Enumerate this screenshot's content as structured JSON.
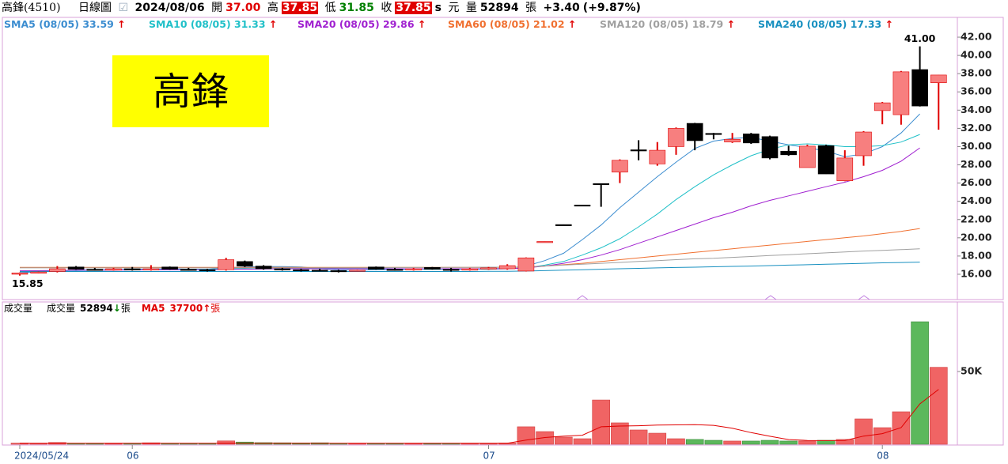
{
  "header": {
    "stock": "高鋒(4510)",
    "period": "日線圖",
    "date": "2024/08/06",
    "open_label": "開",
    "open": "37.00",
    "high_label": "高",
    "high": "37.85",
    "low_label": "低",
    "low": "31.85",
    "close_label": "收",
    "close": "37.85",
    "s": "s",
    "currency": "元",
    "volume_label": "量",
    "volume": "52894",
    "volume_unit": "張",
    "change": "+3.40",
    "change_pct": "(+9.87%)"
  },
  "chart_data": {
    "type": "candlestick",
    "annotation": "高鋒",
    "categories": [
      "2024/05/24",
      null,
      null,
      null,
      null,
      null,
      "06",
      null,
      null,
      null,
      null,
      null,
      null,
      null,
      null,
      null,
      null,
      null,
      null,
      null,
      null,
      null,
      null,
      null,
      null,
      "07",
      null,
      null,
      null,
      null,
      null,
      null,
      null,
      null,
      null,
      null,
      null,
      null,
      null,
      null,
      null,
      null,
      null,
      null,
      null,
      null,
      "08",
      null,
      null,
      null
    ],
    "open": [
      16.0,
      16.15,
      16.3,
      16.8,
      16.55,
      16.45,
      16.6,
      16.5,
      16.8,
      16.55,
      16.5,
      16.5,
      17.4,
      16.9,
      16.6,
      16.5,
      16.45,
      16.4,
      16.35,
      16.8,
      16.55,
      16.5,
      16.75,
      16.55,
      16.45,
      16.6,
      16.6,
      16.35,
      19.5,
      21.45,
      23.6,
      25.95,
      27.2,
      29.65,
      28.1,
      30.0,
      32.55,
      31.45,
      30.5,
      31.4,
      31.1,
      29.5,
      27.7,
      30.1,
      26.25,
      29.0,
      33.95,
      33.5,
      38.45,
      37.0
    ],
    "high": [
      16.2,
      16.3,
      16.9,
      16.9,
      16.7,
      16.7,
      16.8,
      17.0,
      16.85,
      16.7,
      16.6,
      17.8,
      17.5,
      17.0,
      16.7,
      16.6,
      16.6,
      16.5,
      16.5,
      16.85,
      16.7,
      16.7,
      16.8,
      16.7,
      16.7,
      16.8,
      17.1,
      17.85,
      19.6,
      21.45,
      23.6,
      25.95,
      28.6,
      30.7,
      30.5,
      32.1,
      32.6,
      31.5,
      31.5,
      31.5,
      31.2,
      30.1,
      30.2,
      30.2,
      29.6,
      31.7,
      34.9,
      38.3,
      41.0,
      37.85
    ],
    "low": [
      15.85,
      16.1,
      16.2,
      16.5,
      16.4,
      16.4,
      16.4,
      16.4,
      16.5,
      16.4,
      16.3,
      16.4,
      16.8,
      16.5,
      16.4,
      16.3,
      16.3,
      16.2,
      16.3,
      16.5,
      16.4,
      16.4,
      16.5,
      16.3,
      16.4,
      16.5,
      16.5,
      16.3,
      19.5,
      21.4,
      23.55,
      23.4,
      26.0,
      28.5,
      27.9,
      29.1,
      29.6,
      30.8,
      30.4,
      30.3,
      28.6,
      29.0,
      27.7,
      27.0,
      26.2,
      27.9,
      32.45,
      32.4,
      34.4,
      31.85
    ],
    "close": [
      16.15,
      16.25,
      16.6,
      16.55,
      16.45,
      16.6,
      16.5,
      16.6,
      16.55,
      16.5,
      16.45,
      17.6,
      16.9,
      16.6,
      16.5,
      16.45,
      16.4,
      16.35,
      16.45,
      16.55,
      16.5,
      16.6,
      16.55,
      16.45,
      16.6,
      16.7,
      16.95,
      17.8,
      19.6,
      21.4,
      23.55,
      25.9,
      28.5,
      29.6,
      29.6,
      32.0,
      30.65,
      31.4,
      30.8,
      30.4,
      28.75,
      29.1,
      30.05,
      27.0,
      28.75,
      31.6,
      34.8,
      38.2,
      34.45,
      37.85
    ],
    "up_color": "#f77f7f",
    "up_line": "#e00000",
    "down_color": "#000000",
    "high_mark": "41.00",
    "low_mark": "15.85",
    "ylim": [
      13.31,
      44.17
    ],
    "yticks": [
      {
        "value": 16,
        "label": "16.00"
      },
      {
        "value": 18,
        "label": "18.00"
      },
      {
        "value": 20,
        "label": "20.00"
      },
      {
        "value": 22,
        "label": "22.00"
      },
      {
        "value": 24,
        "label": "24.00"
      },
      {
        "value": 26,
        "label": "26.00"
      },
      {
        "value": 28,
        "label": "28.00"
      },
      {
        "value": 30,
        "label": "30.00"
      },
      {
        "value": 32,
        "label": "32.00"
      },
      {
        "value": 34,
        "label": "34.00"
      },
      {
        "value": 36,
        "label": "36.00"
      },
      {
        "value": 38,
        "label": "38.00"
      },
      {
        "value": 40,
        "label": "40.00"
      },
      {
        "value": 42,
        "label": "42.00"
      }
    ],
    "series": [
      {
        "name": "SMA5",
        "legend_date": "(08/05)",
        "legend_value": "33.59",
        "legend_arrow": "↑",
        "color": "#3c8dd0",
        "values": [
          16.2,
          16.25,
          16.35,
          16.45,
          16.5,
          16.5,
          16.55,
          16.55,
          16.6,
          16.55,
          16.55,
          16.7,
          16.8,
          16.85,
          16.85,
          16.8,
          16.6,
          16.5,
          16.45,
          16.5,
          16.5,
          16.55,
          16.55,
          16.55,
          16.55,
          16.6,
          16.65,
          16.9,
          17.5,
          18.3,
          19.8,
          21.4,
          23.3,
          25.0,
          26.7,
          28.3,
          29.8,
          30.6,
          30.9,
          31.0,
          30.6,
          30.2,
          29.9,
          29.5,
          28.9,
          29.2,
          30.0,
          31.5,
          33.59,
          null
        ]
      },
      {
        "name": "SMA10",
        "legend_date": "(08/05)",
        "legend_value": "31.33",
        "legend_arrow": "↑",
        "color": "#20c0c8",
        "values": [
          16.3,
          16.35,
          16.4,
          16.4,
          16.45,
          16.45,
          16.5,
          16.5,
          16.5,
          16.5,
          16.55,
          16.6,
          16.65,
          16.7,
          16.7,
          16.7,
          16.65,
          16.65,
          16.65,
          16.65,
          16.6,
          16.55,
          16.55,
          16.55,
          16.55,
          16.55,
          16.6,
          16.7,
          17.0,
          17.4,
          18.1,
          18.9,
          19.9,
          21.2,
          22.6,
          24.2,
          25.6,
          26.9,
          28.0,
          29.0,
          29.7,
          30.2,
          30.3,
          30.2,
          30.0,
          30.0,
          30.1,
          30.5,
          31.33,
          null
        ]
      },
      {
        "name": "SMA20",
        "legend_date": "(08/05)",
        "legend_value": "29.86",
        "legend_arrow": "↑",
        "color": "#a020d0",
        "values": [
          16.4,
          16.4,
          16.42,
          16.44,
          16.45,
          16.46,
          16.47,
          16.48,
          16.5,
          16.5,
          16.5,
          16.52,
          16.55,
          16.58,
          16.6,
          16.6,
          16.6,
          16.6,
          16.6,
          16.6,
          16.6,
          16.6,
          16.6,
          16.6,
          16.6,
          16.6,
          16.6,
          16.7,
          16.9,
          17.2,
          17.6,
          18.1,
          18.7,
          19.4,
          20.1,
          20.8,
          21.5,
          22.2,
          22.8,
          23.5,
          24.1,
          24.6,
          25.1,
          25.6,
          26.1,
          26.7,
          27.4,
          28.4,
          29.86,
          null
        ]
      },
      {
        "name": "SMA60",
        "legend_date": "(08/05)",
        "legend_value": "21.02",
        "legend_arrow": "↑",
        "color": "#f07030",
        "values": [
          16.75,
          16.75,
          16.75,
          16.75,
          16.75,
          16.75,
          16.75,
          16.75,
          16.75,
          16.75,
          16.75,
          16.75,
          16.75,
          16.75,
          16.75,
          16.75,
          16.75,
          16.75,
          16.75,
          16.75,
          16.75,
          16.75,
          16.75,
          16.75,
          16.75,
          16.75,
          16.75,
          16.8,
          16.9,
          17.05,
          17.2,
          17.4,
          17.6,
          17.8,
          18.0,
          18.2,
          18.4,
          18.6,
          18.8,
          19.0,
          19.2,
          19.4,
          19.6,
          19.8,
          20.0,
          20.2,
          20.45,
          20.7,
          21.02,
          null
        ]
      },
      {
        "name": "SMA120",
        "legend_date": "(08/05)",
        "legend_value": "18.79",
        "legend_arrow": "↑",
        "color": "#a0a0a0",
        "values": [
          16.7,
          16.7,
          16.7,
          16.7,
          16.7,
          16.7,
          16.7,
          16.7,
          16.7,
          16.7,
          16.7,
          16.7,
          16.7,
          16.7,
          16.7,
          16.7,
          16.72,
          16.72,
          16.72,
          16.72,
          16.74,
          16.74,
          16.74,
          16.76,
          16.76,
          16.78,
          16.78,
          16.8,
          16.9,
          17.0,
          17.1,
          17.2,
          17.3,
          17.4,
          17.5,
          17.6,
          17.7,
          17.75,
          17.85,
          17.95,
          18.05,
          18.15,
          18.25,
          18.35,
          18.45,
          18.55,
          18.62,
          18.7,
          18.79,
          null
        ]
      },
      {
        "name": "SMA240",
        "legend_date": "(08/05)",
        "legend_value": "17.33",
        "legend_arrow": "↑",
        "color": "#1890c0",
        "values": [
          16.3,
          16.3,
          16.3,
          16.3,
          16.3,
          16.3,
          16.3,
          16.3,
          16.3,
          16.3,
          16.3,
          16.3,
          16.3,
          16.3,
          16.3,
          16.3,
          16.3,
          16.3,
          16.3,
          16.3,
          16.3,
          16.3,
          16.3,
          16.3,
          16.3,
          16.32,
          16.33,
          16.35,
          16.4,
          16.45,
          16.5,
          16.55,
          16.6,
          16.65,
          16.7,
          16.74,
          16.78,
          16.82,
          16.86,
          16.9,
          16.95,
          17.0,
          17.05,
          17.1,
          17.15,
          17.2,
          17.25,
          17.29,
          17.33,
          null
        ]
      }
    ],
    "volume": {
      "title": "成交量",
      "name": "成交量",
      "value_label": "52894",
      "arrow": "↓",
      "unit": "張",
      "ylim": [
        0,
        97800
      ],
      "yticks": [
        {
          "value": 50000,
          "label": "50K"
        }
      ],
      "values": [
        800,
        500,
        1200,
        600,
        500,
        400,
        500,
        1000,
        600,
        500,
        500,
        2300,
        1500,
        1100,
        1000,
        900,
        1000,
        600,
        500,
        500,
        500,
        500,
        400,
        500,
        500,
        500,
        800,
        12000,
        8700,
        4900,
        3800,
        30400,
        14700,
        9800,
        7600,
        3800,
        3300,
        2700,
        2200,
        2200,
        2700,
        2200,
        2200,
        2700,
        3300,
        17400,
        11400,
        22300,
        84200,
        52894
      ],
      "colors": [
        "#f06464",
        "#f06464",
        "#f06464",
        "#5cb85c",
        "#5cb85c",
        "#f06464",
        "#5cb85c",
        "#f06464",
        "#5cb85c",
        "#5cb85c",
        "#5cb85c",
        "#f06464",
        "#5cb85c",
        "#5cb85c",
        "#5cb85c",
        "#5cb85c",
        "#5cb85c",
        "#5cb85c",
        "#f06464",
        "#5cb85c",
        "#5cb85c",
        "#f06464",
        "#5cb85c",
        "#5cb85c",
        "#f06464",
        "#f06464",
        "#f06464",
        "#f06464",
        "#f06464",
        "#f06464",
        "#f06464",
        "#f06464",
        "#f06464",
        "#f06464",
        "#f06464",
        "#f06464",
        "#5cb85c",
        "#5cb85c",
        "#f06464",
        "#5cb85c",
        "#5cb85c",
        "#5cb85c",
        "#f06464",
        "#5cb85c",
        "#f06464",
        "#f06464",
        "#f06464",
        "#f06464",
        "#5cb85c",
        "#f06464"
      ],
      "ma": {
        "name": "MA5",
        "value_label": "37700",
        "arrow": "↑",
        "unit": "張",
        "color": "#e00000",
        "values": [
          700,
          700,
          700,
          700,
          700,
          700,
          700,
          700,
          700,
          700,
          700,
          700,
          700,
          700,
          700,
          700,
          700,
          700,
          700,
          700,
          700,
          700,
          700,
          700,
          700,
          650,
          700,
          2900,
          4600,
          5600,
          6200,
          12000,
          12500,
          12700,
          13200,
          13300,
          13500,
          13000,
          11000,
          8000,
          5500,
          3200,
          2600,
          2500,
          2600,
          5600,
          7300,
          11400,
          27700,
          37700
        ]
      }
    }
  }
}
